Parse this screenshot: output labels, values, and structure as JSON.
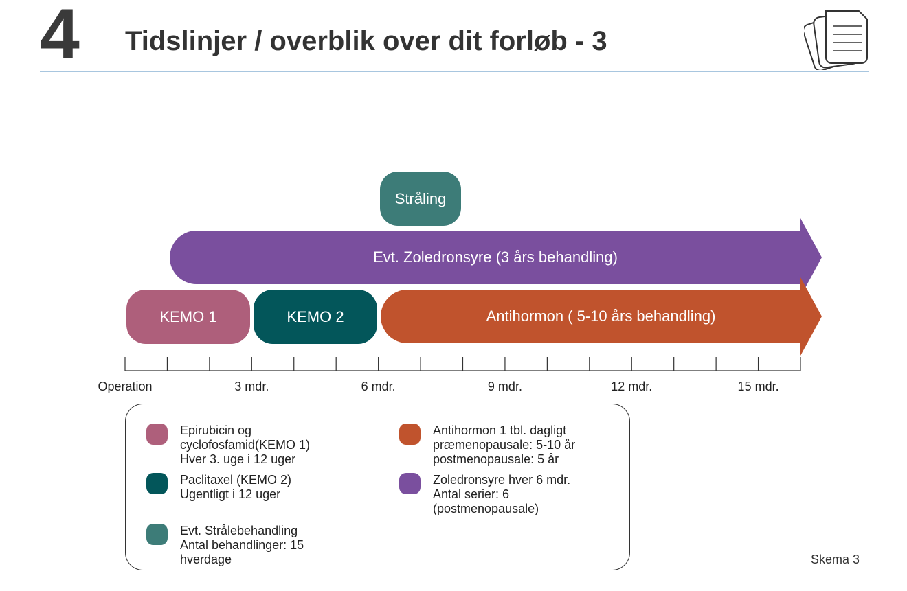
{
  "header": {
    "chapter_number": "4",
    "title": "Tidslinjer / overblik over dit forløb - 3"
  },
  "timeline": {
    "bars": [
      {
        "id": "straaling",
        "label": "Stråling",
        "color": "#3d7c78"
      },
      {
        "id": "zoledronsyre",
        "label": "Evt. Zoledronsyre (3 års behandling)",
        "color": "#7a4f9e"
      },
      {
        "id": "kemo1",
        "label": "KEMO 1",
        "color": "#ae5f7b"
      },
      {
        "id": "kemo2",
        "label": "KEMO 2",
        "color": "#03565a"
      },
      {
        "id": "antihormon",
        "label": "Antihormon ( 5-10 års behandling)",
        "color": "#c0532d"
      }
    ],
    "axis": {
      "tick_count_months": 16,
      "labels": [
        "Operation",
        "3 mdr.",
        "6 mdr.",
        "9 mdr.",
        "12 mdr.",
        "15 mdr."
      ]
    }
  },
  "legend": {
    "items": [
      {
        "color": "#ae5f7b",
        "text": "Epirubicin og\ncyclofosfamid(KEMO 1)\nHver 3. uge i 12 uger"
      },
      {
        "color": "#03565a",
        "text": "Paclitaxel (KEMO 2)\nUgentligt i 12 uger"
      },
      {
        "color": "#3d7c78",
        "text": "Evt. Strålebehandling\nAntal behandlinger: 15\nhverdage"
      },
      {
        "color": "#c0532d",
        "text": "Antihormon 1 tbl. dagligt\npræmenopausale: 5-10 år\npostmenopausale: 5 år"
      },
      {
        "color": "#7a4f9e",
        "text": "Zoledronsyre hver 6 mdr.\nAntal serier: 6\n(postmenopausale)"
      }
    ]
  },
  "footer": {
    "schema_label": "Skema 3"
  },
  "icons": {
    "document": "document-stack-icon"
  }
}
